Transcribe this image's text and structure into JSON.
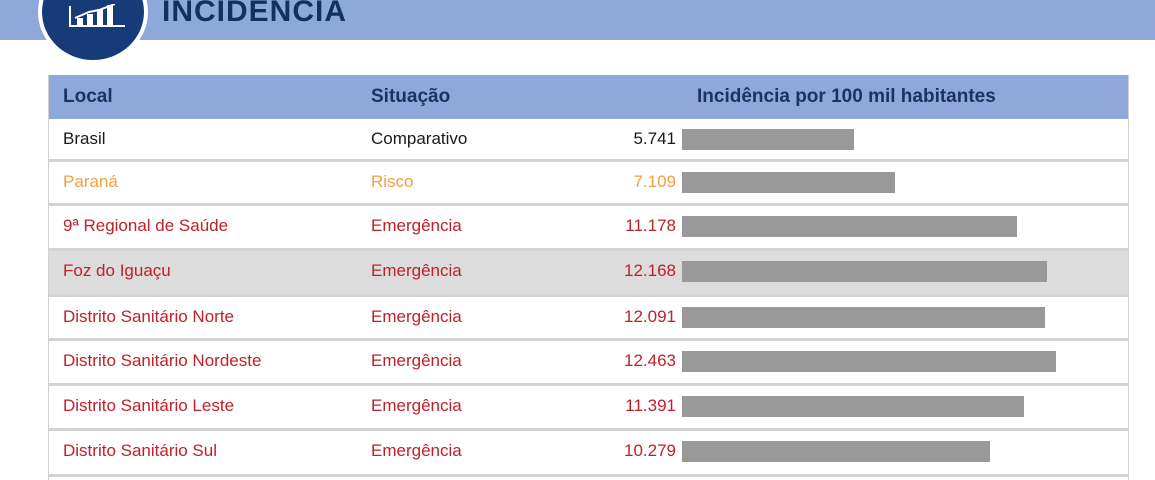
{
  "header": {
    "title": "INCIDÊNCIA",
    "icon": "bar-chart-icon"
  },
  "colors": {
    "banner": "#8fa8dc",
    "badge": "#173a78",
    "bar": "#999999",
    "black": "#1a1a1a",
    "orange": "#f0a040",
    "red": "#c0202a",
    "highlight_row": "#dcdcdc"
  },
  "table": {
    "headers": {
      "local": "Local",
      "situacao": "Situação",
      "incidencia": "Incidência por 100 mil habitantes"
    },
    "rows": [
      {
        "local": "Brasil",
        "situacao": "Comparativo",
        "value_label": "5.741",
        "color": "#1a1a1a",
        "highlight": false
      },
      {
        "local": "Paraná",
        "situacao": "Risco",
        "value_label": "7.109",
        "color": "#f0a040",
        "highlight": false
      },
      {
        "local": "9ª Regional de Saúde",
        "situacao": "Emergência",
        "value_label": "11.178",
        "color": "#c0202a",
        "highlight": false
      },
      {
        "local": "Foz do Iguaçu",
        "situacao": "Emergência",
        "value_label": "12.168",
        "color": "#c0202a",
        "highlight": true
      },
      {
        "local": "Distrito Sanitário Norte",
        "situacao": "Emergência",
        "value_label": "12.091",
        "color": "#c0202a",
        "highlight": false
      },
      {
        "local": "Distrito Sanitário Nordeste",
        "situacao": "Emergência",
        "value_label": "12.463",
        "color": "#c0202a",
        "highlight": false
      },
      {
        "local": "Distrito Sanitário Leste",
        "situacao": "Emergência",
        "value_label": "11.391",
        "color": "#c0202a",
        "highlight": false
      },
      {
        "local": "Distrito Sanitário Sul",
        "situacao": "Emergência",
        "value_label": "10.279",
        "color": "#c0202a",
        "highlight": false
      }
    ]
  },
  "chart_data": {
    "type": "bar",
    "title": "INCIDÊNCIA",
    "xlabel": "",
    "ylabel": "Incidência por 100 mil habitantes",
    "categories": [
      "Brasil",
      "Paraná",
      "9ª Regional de Saúde",
      "Foz do Iguaçu",
      "Distrito Sanitário Norte",
      "Distrito Sanitário Nordeste",
      "Distrito Sanitário Leste",
      "Distrito Sanitário Sul"
    ],
    "values": [
      5741,
      7109,
      11178,
      12168,
      12091,
      12463,
      11391,
      10279
    ],
    "ylim": [
      0,
      12463
    ],
    "orientation": "horizontal",
    "grid": false,
    "legend": "none"
  }
}
